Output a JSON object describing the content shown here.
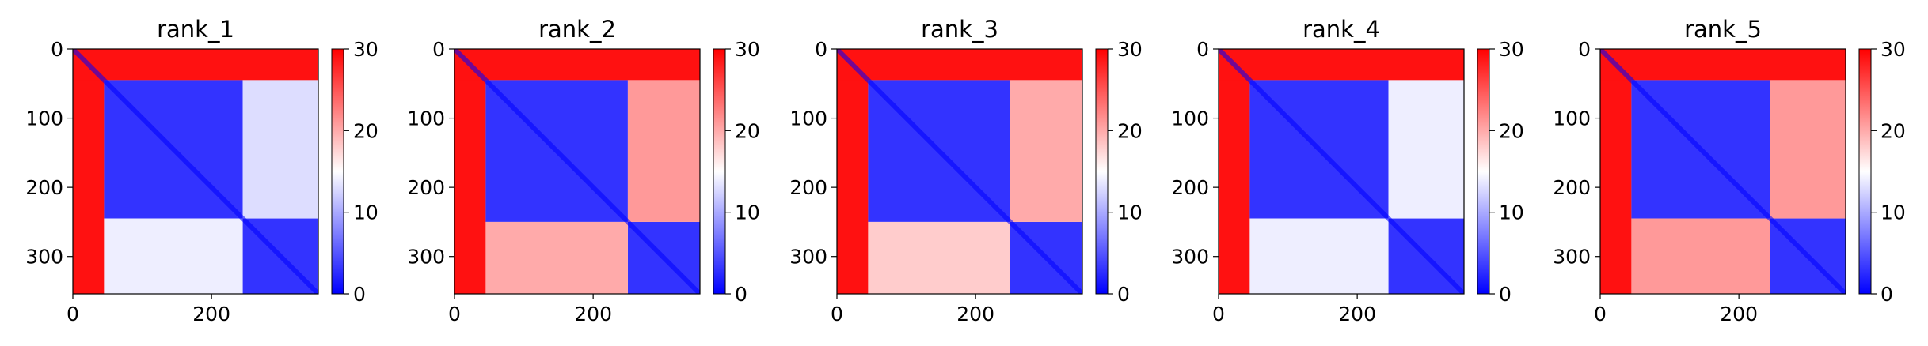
{
  "chart_data": [
    {
      "type": "heatmap",
      "title": "rank_1",
      "x_ticks": [
        0,
        200
      ],
      "y_ticks": [
        0,
        100,
        200,
        300
      ],
      "xlim": [
        0,
        354
      ],
      "ylim": [
        354,
        0
      ],
      "colorbar": {
        "ticks": [
          0,
          10,
          20,
          30
        ],
        "range": [
          0,
          30
        ]
      },
      "colormap": [
        "#0000ff",
        "#ffffff",
        "#ff0000"
      ],
      "blocks": [
        {
          "rows": [
            0,
            45
          ],
          "cols": [
            0,
            354
          ],
          "value": 29
        },
        {
          "rows": [
            45,
            245
          ],
          "cols": [
            45,
            245
          ],
          "value": 3
        },
        {
          "rows": [
            245,
            354
          ],
          "cols": [
            245,
            354
          ],
          "value": 3
        },
        {
          "rows": [
            45,
            245
          ],
          "cols": [
            245,
            354
          ],
          "value": 13
        },
        {
          "rows": [
            245,
            354
          ],
          "cols": [
            45,
            245
          ],
          "value": 14
        }
      ]
    },
    {
      "type": "heatmap",
      "title": "rank_2",
      "x_ticks": [
        0,
        200
      ],
      "y_ticks": [
        0,
        100,
        200,
        300
      ],
      "xlim": [
        0,
        354
      ],
      "ylim": [
        354,
        0
      ],
      "colorbar": {
        "ticks": [
          0,
          10,
          20,
          30
        ],
        "range": [
          0,
          30
        ]
      },
      "colormap": [
        "#0000ff",
        "#ffffff",
        "#ff0000"
      ],
      "blocks": [
        {
          "rows": [
            0,
            45
          ],
          "cols": [
            0,
            354
          ],
          "value": 29
        },
        {
          "rows": [
            45,
            250
          ],
          "cols": [
            45,
            250
          ],
          "value": 3
        },
        {
          "rows": [
            250,
            354
          ],
          "cols": [
            250,
            354
          ],
          "value": 3
        },
        {
          "rows": [
            45,
            250
          ],
          "cols": [
            250,
            354
          ],
          "value": 21
        },
        {
          "rows": [
            250,
            354
          ],
          "cols": [
            45,
            250
          ],
          "value": 20
        }
      ]
    },
    {
      "type": "heatmap",
      "title": "rank_3",
      "x_ticks": [
        0,
        200
      ],
      "y_ticks": [
        0,
        100,
        200,
        300
      ],
      "xlim": [
        0,
        354
      ],
      "ylim": [
        354,
        0
      ],
      "colorbar": {
        "ticks": [
          0,
          10,
          20,
          30
        ],
        "range": [
          0,
          30
        ]
      },
      "colormap": [
        "#0000ff",
        "#ffffff",
        "#ff0000"
      ],
      "blocks": [
        {
          "rows": [
            0,
            45
          ],
          "cols": [
            0,
            354
          ],
          "value": 29
        },
        {
          "rows": [
            45,
            250
          ],
          "cols": [
            45,
            250
          ],
          "value": 3
        },
        {
          "rows": [
            250,
            354
          ],
          "cols": [
            250,
            354
          ],
          "value": 3
        },
        {
          "rows": [
            45,
            250
          ],
          "cols": [
            250,
            354
          ],
          "value": 20
        },
        {
          "rows": [
            250,
            354
          ],
          "cols": [
            45,
            250
          ],
          "value": 18
        }
      ]
    },
    {
      "type": "heatmap",
      "title": "rank_4",
      "x_ticks": [
        0,
        200
      ],
      "y_ticks": [
        0,
        100,
        200,
        300
      ],
      "xlim": [
        0,
        354
      ],
      "ylim": [
        354,
        0
      ],
      "colorbar": {
        "ticks": [
          0,
          10,
          20,
          30
        ],
        "range": [
          0,
          30
        ]
      },
      "colormap": [
        "#0000ff",
        "#ffffff",
        "#ff0000"
      ],
      "blocks": [
        {
          "rows": [
            0,
            45
          ],
          "cols": [
            0,
            354
          ],
          "value": 29
        },
        {
          "rows": [
            45,
            245
          ],
          "cols": [
            45,
            245
          ],
          "value": 3
        },
        {
          "rows": [
            245,
            354
          ],
          "cols": [
            245,
            354
          ],
          "value": 3
        },
        {
          "rows": [
            45,
            245
          ],
          "cols": [
            245,
            354
          ],
          "value": 14
        },
        {
          "rows": [
            245,
            354
          ],
          "cols": [
            45,
            245
          ],
          "value": 14
        }
      ]
    },
    {
      "type": "heatmap",
      "title": "rank_5",
      "x_ticks": [
        0,
        200
      ],
      "y_ticks": [
        0,
        100,
        200,
        300
      ],
      "xlim": [
        0,
        354
      ],
      "ylim": [
        354,
        0
      ],
      "colorbar": {
        "ticks": [
          0,
          10,
          20,
          30
        ],
        "range": [
          0,
          30
        ]
      },
      "colormap": [
        "#0000ff",
        "#ffffff",
        "#ff0000"
      ],
      "blocks": [
        {
          "rows": [
            0,
            45
          ],
          "cols": [
            0,
            354
          ],
          "value": 29
        },
        {
          "rows": [
            45,
            245
          ],
          "cols": [
            45,
            245
          ],
          "value": 3
        },
        {
          "rows": [
            245,
            354
          ],
          "cols": [
            245,
            354
          ],
          "value": 3
        },
        {
          "rows": [
            45,
            245
          ],
          "cols": [
            245,
            354
          ],
          "value": 21
        },
        {
          "rows": [
            245,
            354
          ],
          "cols": [
            45,
            245
          ],
          "value": 21
        }
      ]
    }
  ]
}
